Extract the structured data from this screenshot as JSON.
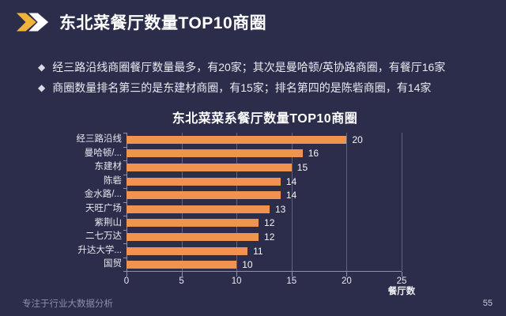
{
  "header": {
    "title": "东北菜餐厅数量TOP10商圈",
    "icon": "double-chevron-right"
  },
  "bullets": [
    {
      "marker": "◆",
      "text": "经三路沿线商圈餐厅数量最多，有20家；其次是曼哈顿/英协路商圈，有餐厅16家"
    },
    {
      "marker": "◆",
      "text": "商圈数量排名第三的是东建材商圈，有15家；排名第四的是陈砦商圈，有14家"
    }
  ],
  "chart_data": {
    "type": "bar",
    "orientation": "horizontal",
    "title": "东北菜菜系餐厅数量TOP10商圈",
    "categories": [
      "经三路沿线",
      "曼哈顿/...",
      "东建材",
      "陈砦",
      "金水路/...",
      "天旺广场",
      "紫荆山",
      "二七万达",
      "升达大学...",
      "国贸"
    ],
    "values": [
      20,
      16,
      15,
      14,
      14,
      13,
      12,
      12,
      11,
      10
    ],
    "xlabel": "餐厅数",
    "xticks": [
      0,
      5,
      10,
      15,
      20,
      25
    ],
    "xlim": [
      0,
      25
    ],
    "bar_color": "#F0934E",
    "grid": true,
    "value_labels": true,
    "legend": "none"
  },
  "footer": {
    "tagline": "专注于行业大数据分析",
    "page_number": "55"
  },
  "colors": {
    "background": "#2B2D4B",
    "bar": "#F0934E",
    "chevron_gold": "#F2B33D",
    "chevron_white": "#FFFFFF",
    "title_text": "#FFFFFF"
  }
}
